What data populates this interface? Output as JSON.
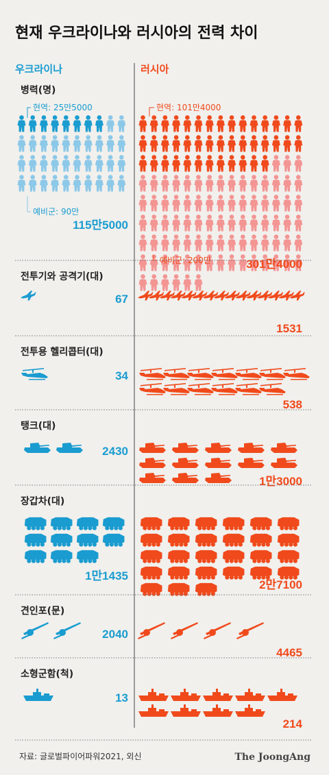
{
  "title": "현재 우크라이나와 러시아의 전력 차이",
  "colors": {
    "ukraine": "#1a9cd0",
    "ukraine_light": "#8cc8e8",
    "russia": "#f04a1c",
    "russia_light": "#f39593",
    "divider": "#444444",
    "dotted": "#777777",
    "background": "#f1f0ed"
  },
  "icons": {
    "personnel": "soldier-icon",
    "fighter": "fighter-jet-icon",
    "helicopter": "helicopter-icon",
    "tank": "tank-icon",
    "apc": "armored-vehicle-icon",
    "artillery": "towed-artillery-icon",
    "warship": "warship-icon"
  },
  "chart_data": {
    "type": "pictograph",
    "countries": [
      "우크라이나",
      "러시아"
    ],
    "personnel": {
      "label": "병력(명)",
      "ukraine": {
        "active_label": "현역: 25만5000",
        "reserve_label": "예비군: 90만",
        "total_label": "115만5000",
        "active": 255000,
        "reserve": 900000,
        "total": 1155000
      },
      "russia": {
        "active_label": "현역: 101만4000",
        "reserve_label": "예비군: 200만",
        "total_label": "301만4000",
        "active": 1014000,
        "reserve": 2000000,
        "total": 3014000
      }
    },
    "categories": [
      {
        "key": "fighters",
        "label": "전투기와 공격기(대)",
        "icon": "fighter",
        "ukraine": 67,
        "russia": 1531,
        "ukraine_label": "67",
        "russia_label": "1531"
      },
      {
        "key": "helicopters",
        "label": "전투용 헬리콥터(대)",
        "icon": "helicopter",
        "ukraine": 34,
        "russia": 538,
        "ukraine_label": "34",
        "russia_label": "538"
      },
      {
        "key": "tanks",
        "label": "탱크(대)",
        "icon": "tank",
        "ukraine": 2430,
        "russia": 13000,
        "ukraine_label": "2430",
        "russia_label": "1만3000"
      },
      {
        "key": "apc",
        "label": "장갑차(대)",
        "icon": "apc",
        "ukraine": 11435,
        "russia": 27100,
        "ukraine_label": "1만1435",
        "russia_label": "2만7100"
      },
      {
        "key": "artillery",
        "label": "견인포(문)",
        "icon": "artillery",
        "ukraine": 2040,
        "russia": 4465,
        "ukraine_label": "2040",
        "russia_label": "4465"
      },
      {
        "key": "corvettes",
        "label": "소형군함(척)",
        "icon": "warship",
        "ukraine": 13,
        "russia": 214,
        "ukraine_label": "13",
        "russia_label": "214"
      }
    ]
  },
  "footer": {
    "source": "자료: 글로벌파이어파워2021, 외신",
    "brand": "The JoongAng"
  }
}
